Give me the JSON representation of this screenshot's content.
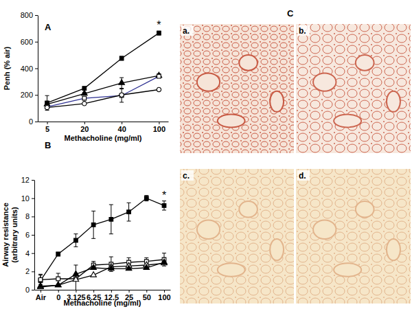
{
  "chart_data": [
    {
      "type": "line",
      "title": "A",
      "xlabel": "Methacholine (mg/ml)",
      "ylabel": [
        "Penh (% air)"
      ],
      "categories": [
        "5",
        "20",
        "40",
        "100"
      ],
      "ylim": [
        0,
        800
      ],
      "yticks": [
        0,
        200,
        400,
        600,
        800
      ],
      "series": [
        {
          "color": "#000000",
          "marker": "square-filled",
          "values": [
            140,
            250,
            475,
            665
          ],
          "errors": [
            55,
            10,
            15,
            15
          ]
        },
        {
          "color": "#000000",
          "marker": "triangle-filled",
          "values": [
            130,
            210,
            290,
            345
          ],
          "errors": [
            20,
            10,
            40,
            15
          ]
        },
        {
          "color": "#2e3192",
          "marker": "square-open",
          "values": [
            110,
            175,
            195,
            340
          ],
          "errors": [
            10,
            10,
            50,
            10
          ]
        },
        {
          "color": "#000000",
          "marker": "circle-open",
          "values": [
            105,
            135,
            200,
            240
          ]
        }
      ],
      "annotations": [
        {
          "text": "*",
          "category": "100"
        }
      ]
    },
    {
      "type": "line",
      "title": "B",
      "xlabel": "Methacholine (mg/ml)",
      "ylabel": [
        "Airway resistance",
        "(arbitrary units)"
      ],
      "categories": [
        "Air",
        "0",
        "3.125",
        "6.25",
        "12.5",
        "25",
        "50",
        "100"
      ],
      "ylim": [
        0,
        12
      ],
      "yticks": [
        0,
        2,
        4,
        6,
        8,
        10,
        12
      ],
      "series": [
        {
          "color": "#000000",
          "marker": "square-filled",
          "values": [
            1.0,
            3.9,
            5.4,
            7.1,
            7.7,
            8.5,
            10.0,
            9.2
          ],
          "errors": [
            0.7,
            0.2,
            0.7,
            1.5,
            1.6,
            1.0,
            0.3,
            0.5
          ]
        },
        {
          "color": "#000000",
          "marker": "square-open",
          "values": [
            1.1,
            1.2,
            1.2,
            2.7,
            2.8,
            3.0,
            3.1,
            3.3
          ],
          "errors": [
            0.5,
            0.6,
            1.5,
            0.4,
            0.8,
            0.5,
            0.4,
            0.7
          ]
        },
        {
          "color": "#000000",
          "marker": "triangle-open",
          "values": [
            0.3,
            0.5,
            1.1,
            1.6,
            2.5,
            2.6,
            2.7,
            2.9
          ]
        },
        {
          "color": "#000000",
          "marker": "triangle-filled",
          "values": [
            0.4,
            0.5,
            1.7,
            2.4,
            2.3,
            2.3,
            2.4,
            3.0
          ]
        }
      ],
      "annotations": [
        {
          "text": "*",
          "category": "100"
        }
      ]
    }
  ],
  "images": {
    "label": "C",
    "panels": [
      "a.",
      "b.",
      "c.",
      "d."
    ]
  }
}
